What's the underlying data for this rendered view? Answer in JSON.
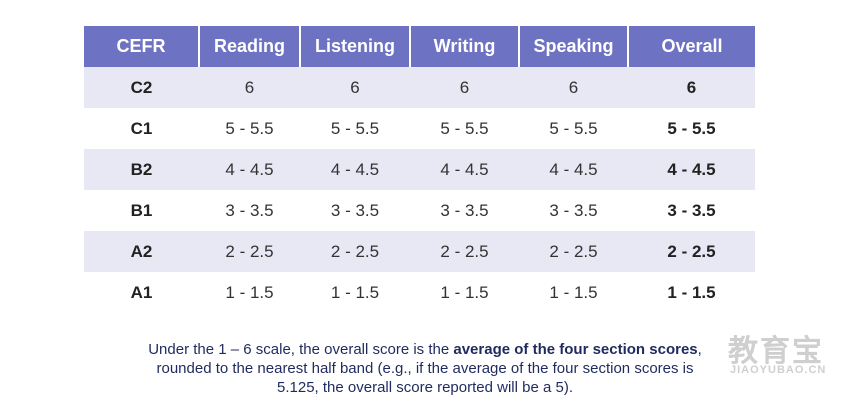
{
  "table": {
    "header": [
      "CEFR",
      "Reading",
      "Listening",
      "Writing",
      "Speaking",
      "Overall"
    ],
    "rows": [
      [
        "C2",
        "6",
        "6",
        "6",
        "6",
        "6"
      ],
      [
        "C1",
        "5 - 5.5",
        "5 - 5.5",
        "5 - 5.5",
        "5 - 5.5",
        "5 - 5.5"
      ],
      [
        "B2",
        "4 - 4.5",
        "4 - 4.5",
        "4 - 4.5",
        "4 - 4.5",
        "4 - 4.5"
      ],
      [
        "B1",
        "3 - 3.5",
        "3 - 3.5",
        "3 - 3.5",
        "3 - 3.5",
        "3 - 3.5"
      ],
      [
        "A2",
        "2 - 2.5",
        "2 - 2.5",
        "2 - 2.5",
        "2 - 2.5",
        "2 - 2.5"
      ],
      [
        "A1",
        "1 - 1.5",
        "1 - 1.5",
        "1 - 1.5",
        "1 - 1.5",
        "1 - 1.5"
      ]
    ]
  },
  "note": {
    "line1": [
      "Under the 1 – 6 scale, the overall score is the ",
      "average of the four section scores",
      ","
    ],
    "line2": "rounded to the nearest half band (e.g., if the average of the four section scores is",
    "line3": "5.125, the overall score reported will be a 5)."
  },
  "watermark": {
    "logo": "教育宝",
    "site": "JIAOYUBAO.CN"
  }
}
